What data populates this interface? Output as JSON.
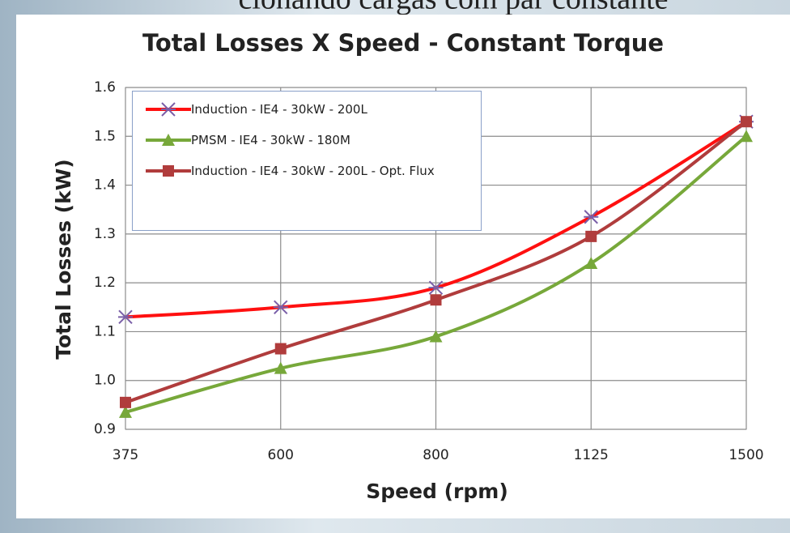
{
  "header": "cionando cargas com par constante",
  "chart_data": {
    "type": "line",
    "title": "Total Losses X Speed - Constant Torque",
    "x_label": "Speed (rpm)",
    "y_label": "Total Losses (kW)",
    "categories": [
      "375",
      "600",
      "800",
      "1125",
      "1500"
    ],
    "series": [
      {
        "name": "Induction - IE4 - 30kW - 200L",
        "color": "#ff1010",
        "marker": "x",
        "marker_color": "#7a5fa8",
        "values": [
          1.13,
          1.15,
          1.19,
          1.335,
          1.53
        ]
      },
      {
        "name": "PMSM - IE4 - 30kW - 180M",
        "color": "#77a83a",
        "marker": "triangle",
        "marker_color": "#77a83a",
        "values": [
          0.935,
          1.025,
          1.09,
          1.24,
          1.5
        ]
      },
      {
        "name": "Induction - IE4 - 30kW - 200L - Opt. Flux",
        "color": "#b03c3c",
        "marker": "square",
        "marker_color": "#b03c3c",
        "values": [
          0.955,
          1.065,
          1.165,
          1.295,
          1.53
        ]
      }
    ],
    "ylim": [
      0.9,
      1.6
    ],
    "yticks": [
      0.9,
      {
        "value": 1,
        "label": "1.0"
      },
      1.1,
      1.2,
      1.3,
      1.4,
      1.5,
      1.6
    ],
    "grid": true,
    "smooth": true,
    "legend": "top-left"
  }
}
